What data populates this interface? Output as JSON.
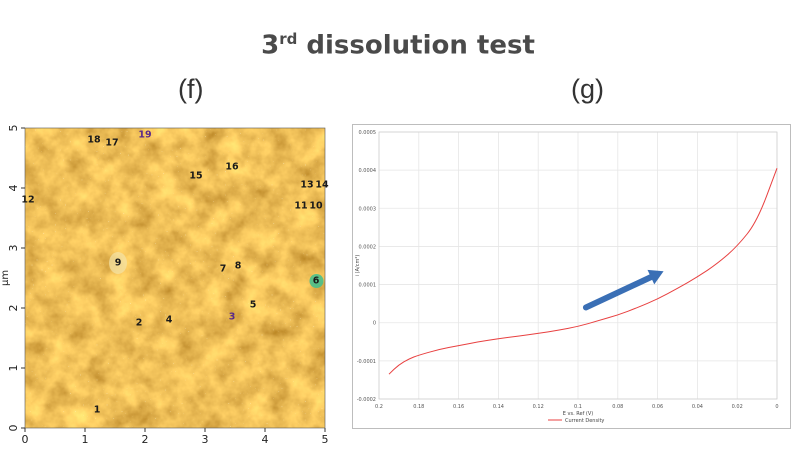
{
  "title": {
    "main": "3",
    "sup": "rd",
    "rest": " dissolution test"
  },
  "panels": {
    "f": "(f)",
    "g": "(g)"
  },
  "chart_data": [
    {
      "panel": "(f)",
      "type": "heatmap",
      "description_type": "AFM topography image with numbered particles",
      "xlim": [
        0,
        5
      ],
      "ylim": [
        0,
        5
      ],
      "x_ticks": [
        "0",
        "1",
        "2",
        "3",
        "4",
        "5"
      ],
      "y_ticks": [
        "0",
        "1",
        "2",
        "3",
        "4",
        "5"
      ],
      "ylabel": "µm",
      "markers": [
        {
          "label": "1",
          "x": 1.2,
          "y": 0.3
        },
        {
          "label": "2",
          "x": 1.9,
          "y": 1.75
        },
        {
          "label": "3",
          "x": 3.45,
          "y": 1.85
        },
        {
          "label": "4",
          "x": 2.4,
          "y": 1.8
        },
        {
          "label": "5",
          "x": 3.8,
          "y": 2.05
        },
        {
          "label": "6",
          "x": 4.85,
          "y": 2.45
        },
        {
          "label": "7",
          "x": 3.3,
          "y": 2.65
        },
        {
          "label": "8",
          "x": 3.55,
          "y": 2.7
        },
        {
          "label": "9",
          "x": 1.55,
          "y": 2.75
        },
        {
          "label": "10",
          "x": 4.85,
          "y": 3.7
        },
        {
          "label": "11",
          "x": 4.6,
          "y": 3.7
        },
        {
          "label": "12",
          "x": 0.05,
          "y": 3.8
        },
        {
          "label": "13",
          "x": 4.7,
          "y": 4.05
        },
        {
          "label": "14",
          "x": 4.95,
          "y": 4.05
        },
        {
          "label": "15",
          "x": 2.85,
          "y": 4.2
        },
        {
          "label": "16",
          "x": 3.45,
          "y": 4.35
        },
        {
          "label": "17",
          "x": 1.45,
          "y": 4.75
        },
        {
          "label": "18",
          "x": 1.15,
          "y": 4.8
        },
        {
          "label": "19",
          "x": 2.0,
          "y": 4.88
        }
      ],
      "colors": {
        "dark": "#6b3b10",
        "mid": "#b98327",
        "light": "#e2bb55",
        "highlight": "#f6e6a0"
      }
    },
    {
      "panel": "(g)",
      "type": "line",
      "xlabel": "E vs. Ref (V)",
      "ylabel": "i (A/cm²)",
      "xlim": [
        0.2,
        0
      ],
      "ylim": [
        -0.0002,
        0.0005
      ],
      "x_ticks": [
        "0.2",
        "0.18",
        "0.16",
        "0.14",
        "0.12",
        "0.1",
        "0.08",
        "0.06",
        "0.04",
        "0.02",
        "0"
      ],
      "y_ticks": [
        "0.0005",
        "0.0004",
        "0.0003",
        "0.0002",
        "0.0001",
        "0",
        "-0.0001",
        "-0.0002"
      ],
      "grid": true,
      "legend": {
        "position": "bottom-left",
        "entries": [
          "Current Density"
        ]
      },
      "series": [
        {
          "name": "Current Density",
          "color": "#e84040",
          "x": [
            0.195,
            0.19,
            0.185,
            0.18,
            0.17,
            0.16,
            0.15,
            0.14,
            0.13,
            0.12,
            0.11,
            0.1,
            0.09,
            0.08,
            0.07,
            0.06,
            0.05,
            0.04,
            0.03,
            0.02,
            0.01,
            0.0
          ],
          "y": [
            -0.000135,
            -0.00011,
            -9.5e-05,
            -8.5e-05,
            -7e-05,
            -6e-05,
            -5e-05,
            -4.2e-05,
            -3.5e-05,
            -2.8e-05,
            -2e-05,
            -1e-05,
            5e-06,
            2e-05,
            4e-05,
            6.2e-05,
            9e-05,
            0.00012,
            0.000155,
            0.0002,
            0.000265,
            0.000405
          ]
        }
      ],
      "annotation": {
        "type": "arrow",
        "color": "#3a6fb5",
        "from": [
          0.096,
          4e-05
        ],
        "to": [
          0.057,
          0.000135
        ]
      }
    }
  ]
}
